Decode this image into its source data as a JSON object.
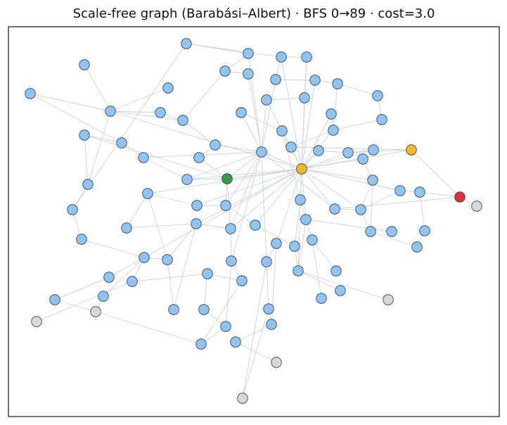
{
  "title": "Scale-free graph (Barabási–Albert) · BFS 0→89 · cost=3.0"
}
